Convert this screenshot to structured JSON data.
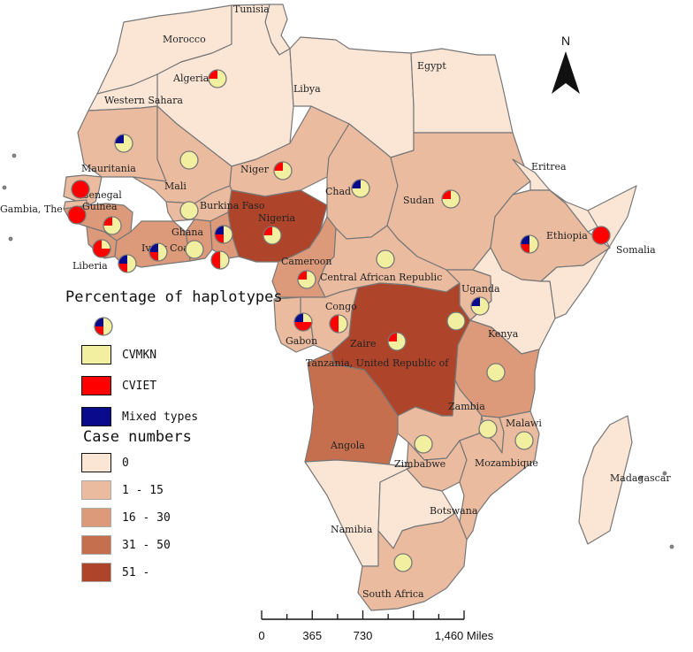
{
  "north_arrow": {
    "label": "N"
  },
  "legend": {
    "haplotype_title": "Percentage of haplotypes",
    "haplotypes": [
      {
        "label": "CVMKN",
        "color": "#f2f0a0"
      },
      {
        "label": "CVIET",
        "color": "#ff0000"
      },
      {
        "label": "Mixed types",
        "color": "#0a0a8c"
      }
    ],
    "case_title": "Case numbers",
    "cases": [
      {
        "label": "0",
        "color": "#fbe6d6"
      },
      {
        "label": "1 - 15",
        "color": "#ebbb9f"
      },
      {
        "label": "16 - 30",
        "color": "#dc9a7a"
      },
      {
        "label": "31 - 50",
        "color": "#c66f4e"
      },
      {
        "label": "51 -",
        "color": "#ae452b"
      }
    ]
  },
  "scale_bar": {
    "ticks": [
      "0",
      "365",
      "730",
      "1,460 Miles"
    ]
  },
  "countries": [
    {
      "name": "Tunisia",
      "cases": "0"
    },
    {
      "name": "Morocco",
      "cases": "0"
    },
    {
      "name": "Algeria",
      "cases": "0"
    },
    {
      "name": "Libya",
      "cases": "0"
    },
    {
      "name": "Egypt",
      "cases": "0"
    },
    {
      "name": "Western Sahara",
      "cases": "0"
    },
    {
      "name": "Mauritania",
      "cases": "1 - 15"
    },
    {
      "name": "Mali",
      "cases": "1 - 15"
    },
    {
      "name": "Niger",
      "cases": "1 - 15"
    },
    {
      "name": "Chad",
      "cases": "1 - 15"
    },
    {
      "name": "Sudan",
      "cases": "1 - 15"
    },
    {
      "name": "Eritrea",
      "cases": "0"
    },
    {
      "name": "Senegal",
      "cases": "1 - 15"
    },
    {
      "name": "Gambia, The",
      "cases": "1 - 15"
    },
    {
      "name": "Guinea",
      "cases": "16 - 30"
    },
    {
      "name": "Burkina Faso",
      "cases": "1 - 15"
    },
    {
      "name": "Nigeria",
      "cases": "51 -"
    },
    {
      "name": "Ghana",
      "cases": "16 - 30"
    },
    {
      "name": "Liberia",
      "cases": "16 - 30"
    },
    {
      "name": "Ivory Coast",
      "cases": "16 - 30"
    },
    {
      "name": "Ethiopia",
      "cases": "1 - 15"
    },
    {
      "name": "Somalia",
      "cases": "0"
    },
    {
      "name": "Cameroon",
      "cases": "16 - 30"
    },
    {
      "name": "Central African Republic",
      "cases": "1 - 15"
    },
    {
      "name": "Uganda",
      "cases": "1 - 15"
    },
    {
      "name": "Kenya",
      "cases": "0"
    },
    {
      "name": "Congo",
      "cases": "1 - 15"
    },
    {
      "name": "Gabon",
      "cases": "1 - 15"
    },
    {
      "name": "Zaire",
      "cases": "51 -"
    },
    {
      "name": "Tanzania, United Republic of",
      "cases": "16 - 30"
    },
    {
      "name": "Zambia",
      "cases": "1 - 15"
    },
    {
      "name": "Malawi",
      "cases": "1 - 15"
    },
    {
      "name": "Angola",
      "cases": "31 - 50"
    },
    {
      "name": "Zimbabwe",
      "cases": "1 - 15"
    },
    {
      "name": "Mozambique",
      "cases": "1 - 15"
    },
    {
      "name": "Madagascar",
      "cases": "0"
    },
    {
      "name": "Namibia",
      "cases": "0"
    },
    {
      "name": "Botswana",
      "cases": "0"
    },
    {
      "name": "South Africa",
      "cases": "1 - 15"
    }
  ],
  "pie_charts": [
    {
      "country": "Algeria",
      "cvmkn": 75,
      "cviet": 25,
      "mixed": 0
    },
    {
      "country": "Mauritania",
      "cvmkn": 75,
      "cviet": 0,
      "mixed": 25
    },
    {
      "country": "Mali",
      "cvmkn": 100,
      "cviet": 0,
      "mixed": 0
    },
    {
      "country": "Niger",
      "cvmkn": 75,
      "cviet": 25,
      "mixed": 0
    },
    {
      "country": "Chad",
      "cvmkn": 75,
      "cviet": 0,
      "mixed": 25
    },
    {
      "country": "Sudan",
      "cvmkn": 75,
      "cviet": 25,
      "mixed": 0
    },
    {
      "country": "Senegal",
      "cvmkn": 0,
      "cviet": 100,
      "mixed": 0
    },
    {
      "country": "Gambia, The",
      "cvmkn": 0,
      "cviet": 100,
      "mixed": 0
    },
    {
      "country": "Guinea",
      "cvmkn": 75,
      "cviet": 25,
      "mixed": 0
    },
    {
      "country": "Burkina Faso",
      "cvmkn": 100,
      "cviet": 0,
      "mixed": 0
    },
    {
      "country": "Nigeria",
      "cvmkn": 75,
      "cviet": 25,
      "mixed": 0
    },
    {
      "country": "Ghana",
      "cvmkn": 100,
      "cviet": 0,
      "mixed": 0
    },
    {
      "country": "Ghana east",
      "cvmkn": 50,
      "cviet": 25,
      "mixed": 25
    },
    {
      "country": "Liberia",
      "cvmkn": 25,
      "cviet": 75,
      "mixed": 0
    },
    {
      "country": "Ivory Coast west",
      "cvmkn": 50,
      "cviet": 25,
      "mixed": 25
    },
    {
      "country": "Ivory Coast",
      "cvmkn": 50,
      "cviet": 25,
      "mixed": 25
    },
    {
      "country": "Ghana coast",
      "cvmkn": 50,
      "cviet": 50,
      "mixed": 0
    },
    {
      "country": "Ethiopia",
      "cvmkn": 50,
      "cviet": 25,
      "mixed": 25
    },
    {
      "country": "Somalia",
      "cvmkn": 0,
      "cviet": 100,
      "mixed": 0
    },
    {
      "country": "Cameroon",
      "cvmkn": 75,
      "cviet": 25,
      "mixed": 0
    },
    {
      "country": "Central African Republic",
      "cvmkn": 100,
      "cviet": 0,
      "mixed": 0
    },
    {
      "country": "Uganda",
      "cvmkn": 75,
      "cviet": 0,
      "mixed": 25
    },
    {
      "country": "Uganda south",
      "cvmkn": 100,
      "cviet": 0,
      "mixed": 0
    },
    {
      "country": "Congo",
      "cvmkn": 50,
      "cviet": 50,
      "mixed": 0
    },
    {
      "country": "Gabon",
      "cvmkn": 25,
      "cviet": 50,
      "mixed": 25
    },
    {
      "country": "Zaire",
      "cvmkn": 75,
      "cviet": 25,
      "mixed": 0
    },
    {
      "country": "Tanzania, United Republic of",
      "cvmkn": 100,
      "cviet": 0,
      "mixed": 0
    },
    {
      "country": "Zambia",
      "cvmkn": 100,
      "cviet": 0,
      "mixed": 0
    },
    {
      "country": "Malawi",
      "cvmkn": 100,
      "cviet": 0,
      "mixed": 0
    },
    {
      "country": "Mozambique",
      "cvmkn": 100,
      "cviet": 0,
      "mixed": 0
    },
    {
      "country": "South Africa",
      "cvmkn": 100,
      "cviet": 0,
      "mixed": 0
    }
  ]
}
